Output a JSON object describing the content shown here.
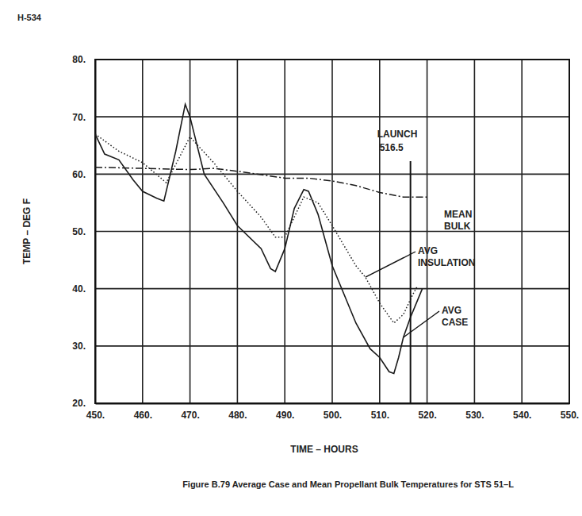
{
  "page_header": "H-534",
  "chart_data": {
    "type": "line",
    "title": "Figure B.79 Average Case and Mean Propellant Bulk Temperatures for STS 51–L",
    "x_label": "TIME – HOURS",
    "y_label": "TEMP – DEG F",
    "xlim": [
      450,
      550
    ],
    "ylim": [
      20,
      80
    ],
    "xticks": [
      {
        "value": 450,
        "label": "450."
      },
      {
        "value": 460,
        "label": "460."
      },
      {
        "value": 470,
        "label": "470."
      },
      {
        "value": 480,
        "label": "480."
      },
      {
        "value": 490,
        "label": "490."
      },
      {
        "value": 500,
        "label": "500."
      },
      {
        "value": 510,
        "label": "510."
      },
      {
        "value": 520,
        "label": "520."
      },
      {
        "value": 530,
        "label": "530."
      },
      {
        "value": 540,
        "label": "540."
      },
      {
        "value": 550,
        "label": "550."
      }
    ],
    "yticks": [
      {
        "value": 20,
        "label": "20."
      },
      {
        "value": 30,
        "label": "30."
      },
      {
        "value": 40,
        "label": "40."
      },
      {
        "value": 50,
        "label": "50."
      },
      {
        "value": 60,
        "label": "60."
      },
      {
        "value": 70,
        "label": "70."
      },
      {
        "value": 80,
        "label": "80."
      }
    ],
    "grid": true,
    "series": [
      {
        "name": "MEAN BULK",
        "color": "#1a1a1a",
        "line_style": "dashdot",
        "x": [
          450,
          460,
          470,
          475,
          480,
          490,
          495,
          500,
          505,
          510,
          515,
          520
        ],
        "values": [
          61.2,
          61,
          60.8,
          61,
          60.5,
          59.3,
          59.3,
          58.8,
          58,
          56.8,
          56,
          56
        ]
      },
      {
        "name": "AVG INSULATION",
        "color": "#1a1a1a",
        "line_style": "dotted",
        "x": [
          450,
          455,
          460,
          465,
          470,
          475,
          480,
          485,
          488,
          490,
          494,
          497,
          500,
          505,
          507,
          510,
          513,
          515,
          517,
          518
        ],
        "values": [
          67,
          64,
          62,
          58.5,
          66.5,
          62,
          57,
          52.5,
          49,
          49,
          56,
          55,
          51,
          44,
          42,
          37.5,
          34,
          35.5,
          39,
          40.5
        ]
      },
      {
        "name": "AVG CASE",
        "color": "#1a1a1a",
        "line_style": "solid",
        "x": [
          450,
          452,
          455,
          458,
          460,
          463,
          464.5,
          467,
          469,
          470,
          473,
          477,
          480,
          485,
          487,
          488,
          490,
          492,
          494,
          495,
          497,
          500,
          505,
          508,
          510,
          512,
          513,
          514,
          515,
          516.5,
          518,
          519
        ],
        "values": [
          67,
          63.5,
          62.5,
          59,
          57,
          55.8,
          55.3,
          64,
          72.2,
          70,
          60,
          55,
          51,
          47,
          43.5,
          43,
          47,
          54,
          57.3,
          57,
          53,
          44,
          34,
          29.5,
          28,
          25.5,
          25.2,
          28,
          31.5,
          35,
          38,
          40
        ]
      }
    ],
    "annotations": [
      {
        "text": "LAUNCH",
        "x": 516.5
      }
    ]
  }
}
